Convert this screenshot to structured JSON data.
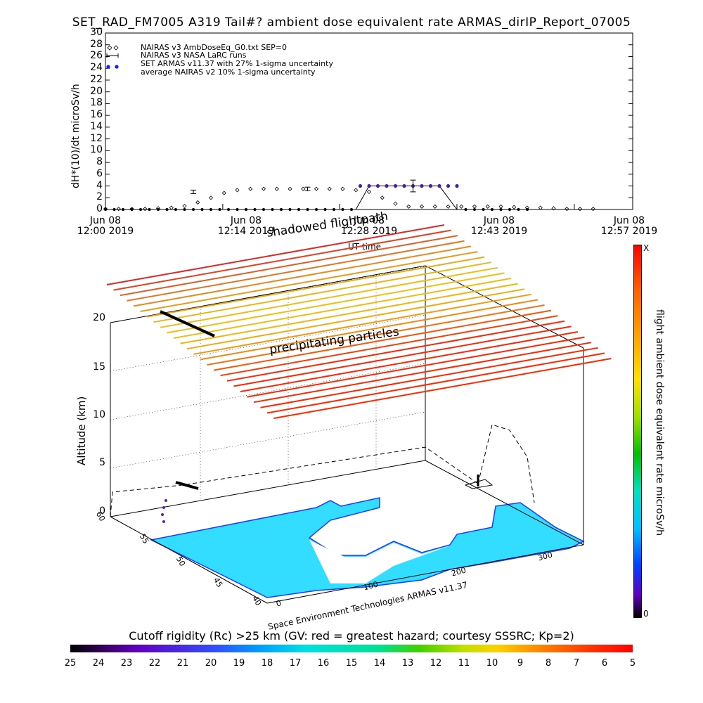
{
  "title": "SET_RAD_FM7005  A319 Tail#? ambient dose equivalent rate ARMAS_dirIP_Report_07005",
  "chart_data": [
    {
      "type": "scatter",
      "ylabel": "dH*(10)/dt microSv/h",
      "ylim": [
        0,
        30
      ],
      "y_ticks": [
        0,
        2,
        4,
        6,
        8,
        10,
        12,
        14,
        16,
        18,
        20,
        22,
        24,
        26,
        28,
        30
      ],
      "x_ticks": [
        {
          "line1": "Jun 08",
          "line2": "12:00 2019"
        },
        {
          "line1": "Jun 08",
          "line2": "12:14 2019"
        },
        {
          "line1": "Jun 08",
          "line2": "12:28 2019"
        },
        {
          "line1": "Jun 08",
          "line2": "12:43 2019"
        },
        {
          "line1": "Jun 08",
          "line2": "12:57 2019"
        }
      ],
      "xlabel": "UT time",
      "legend": [
        "NAIRAS v3 AmbDoseEq_G0.txt SEP=0",
        "NAIRAS v3 NASA LaRC runs",
        "SET ARMAS v11.37 with 27% 1-sigma uncertainty",
        "average NAIRAS v2 10% 1-sigma uncertainty"
      ],
      "series": [
        {
          "name": "NAIRAS v3 AmbDoseEq_G0.txt SEP=0",
          "marker": "diamond",
          "x_min": [
            0,
            3,
            6,
            9,
            12,
            15,
            18,
            21,
            24,
            27,
            30,
            33,
            36,
            39,
            42,
            45,
            48,
            51,
            54,
            57,
            60,
            63,
            66,
            69,
            72,
            75,
            78,
            81,
            84,
            87,
            90,
            93,
            96,
            99,
            102,
            105,
            108,
            111
          ],
          "values": [
            0.1,
            0.1,
            0.1,
            0.1,
            0.2,
            0.3,
            0.6,
            1.2,
            2.0,
            2.8,
            3.3,
            3.5,
            3.5,
            3.5,
            3.5,
            3.5,
            3.5,
            3.5,
            3.5,
            3.3,
            3.0,
            2.0,
            1.0,
            0.5,
            0.5,
            0.5,
            0.5,
            0.5,
            0.5,
            0.5,
            0.5,
            0.4,
            0.3,
            0.3,
            0.2,
            0.1,
            0.1,
            0.1
          ]
        },
        {
          "name": "SET ARMAS v11.37 with 27% 1-sigma uncertainty",
          "marker": "dot",
          "x_min": [
            0,
            2,
            4,
            6,
            8,
            10,
            12,
            14,
            16,
            18,
            20,
            22,
            24,
            26,
            28,
            30,
            32,
            34,
            36,
            38,
            40,
            42,
            44,
            46,
            48,
            50,
            52,
            54,
            56,
            58,
            60,
            62,
            64,
            66,
            68,
            70,
            72,
            74,
            76,
            78,
            80,
            82,
            84,
            86,
            88,
            90,
            92,
            94,
            96
          ],
          "values": [
            0,
            0,
            0,
            0,
            0,
            0,
            0,
            0,
            0,
            0,
            0,
            0,
            0,
            0,
            0,
            0,
            0,
            0,
            0,
            0,
            0,
            0,
            0,
            0,
            0,
            0,
            0,
            0,
            0,
            4,
            4,
            4,
            4,
            4,
            4,
            4,
            4,
            4,
            4,
            4,
            4,
            0,
            0,
            0,
            0,
            0,
            0,
            0,
            0
          ]
        },
        {
          "name": "average NAIRAS v2 10% 1-sigma uncertainty",
          "marker": "line",
          "x_min": [
            0,
            57,
            60,
            76,
            80,
            120
          ],
          "values": [
            0,
            0,
            4,
            4,
            0,
            0
          ]
        }
      ],
      "error_bars": [
        {
          "x_min": 20,
          "y": 3.0,
          "err": 0.3
        },
        {
          "x_min": 46,
          "y": 3.5,
          "err": 0.3
        },
        {
          "x_min": 70,
          "y": 4.0,
          "err": 1.0
        }
      ]
    },
    {
      "type": "3d-scatter",
      "zlabel": "Altitude (km)",
      "z_ticks": [
        "0",
        "5",
        "10",
        "15",
        "20"
      ],
      "lat_ticks": [
        "40",
        "45",
        "50",
        "55",
        "60"
      ],
      "lon_ticks": [
        "0",
        "100",
        "200",
        "300"
      ],
      "annotations": [
        "shadowed flightpath",
        "precipitating particles"
      ],
      "credit": "Space Environment Technologies ARMAS v11.37",
      "colorbar_label": "flight ambient dose equivalent rate microSv/h",
      "colorbar_ticks": [
        "X",
        "0"
      ]
    },
    {
      "type": "colorbar",
      "title": "Cutoff rigidity (Rc) >25 km (GV: red = greatest hazard; courtesy SSSRC; Kp=2)",
      "ticks": [
        "25",
        "24",
        "23",
        "22",
        "21",
        "20",
        "19",
        "18",
        "17",
        "16",
        "15",
        "14",
        "13",
        "12",
        "11",
        "10",
        "9",
        "8",
        "7",
        "6",
        "5"
      ]
    }
  ]
}
